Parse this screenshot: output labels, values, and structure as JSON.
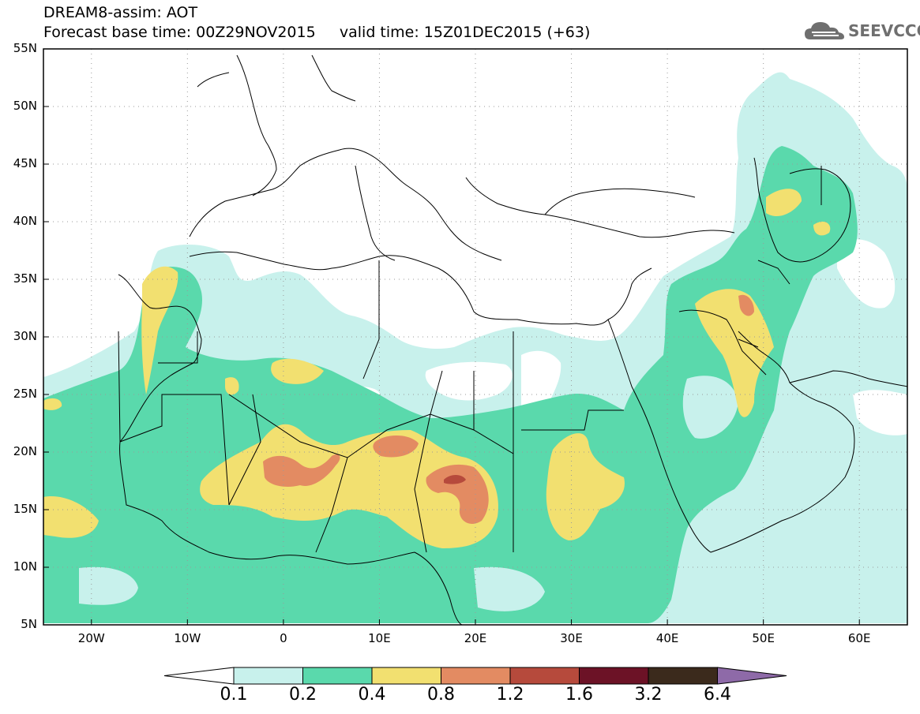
{
  "header": {
    "line1": "DREAM8-assim: AOT",
    "line2": "Forecast base time: 00Z29NOV2015     valid time: 15Z01DEC2015 (+63)"
  },
  "logo": {
    "text": "SEEVCCC",
    "icon": "cloud-icon"
  },
  "map": {
    "lat_labels": [
      "55N",
      "50N",
      "45N",
      "40N",
      "35N",
      "30N",
      "25N",
      "20N",
      "15N",
      "10N",
      "5N"
    ],
    "lon_labels": [
      "20W",
      "10W",
      "0",
      "10E",
      "20E",
      "30E",
      "40E",
      "50E",
      "60E"
    ],
    "lat_range": [
      5,
      55
    ],
    "lon_range": [
      -25,
      65
    ],
    "colors": {
      "c1": "#c8f1ec",
      "c2": "#5ad9ac",
      "c3": "#f2e070",
      "c4": "#e38b62",
      "c5": "#b64a3c",
      "c6": "#6c1226",
      "c7": "#3b2a1c",
      "over": "#8e6aa8"
    }
  },
  "colorbar": {
    "levels": [
      "0.1",
      "0.2",
      "0.4",
      "0.8",
      "1.2",
      "1.6",
      "3.2",
      "6.4"
    ],
    "colors": [
      "#c8f1ec",
      "#5ad9ac",
      "#f2e070",
      "#e38b62",
      "#b64a3c",
      "#6c1226",
      "#3b2a1c"
    ],
    "under_color": "#ffffff",
    "over_color": "#8e6aa8"
  }
}
